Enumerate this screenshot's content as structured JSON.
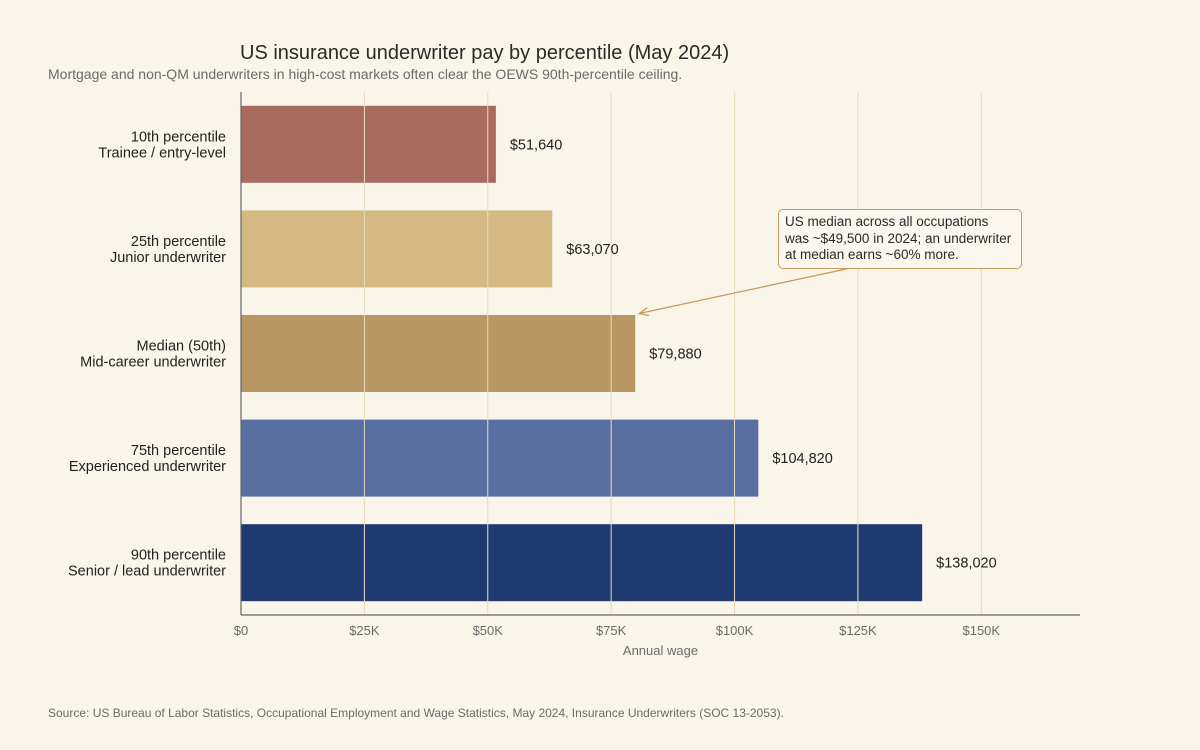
{
  "chart_data": {
    "type": "bar",
    "orientation": "horizontal",
    "title": "US insurance underwriter pay by percentile (May 2024)",
    "subtitle": "Mortgage and non-QM underwriters in high-cost markets often clear the OEWS 90th-percentile ceiling.",
    "source": "Source: US Bureau of Labor Statistics, Occupational Employment and Wage Statistics, May 2024, Insurance Underwriters (SOC 13-2053).",
    "xlabel": "Annual wage",
    "ylabel": "",
    "xlim": [
      0,
      170000
    ],
    "x_ticks": [
      0,
      25000,
      50000,
      75000,
      100000,
      125000,
      150000
    ],
    "x_tick_labels": [
      "$0",
      "$25K",
      "$50K",
      "$75K",
      "$100K",
      "$125K",
      "$150K"
    ],
    "grid": "vertical",
    "categories": [
      [
        "10th percentile",
        "Trainee / entry-level"
      ],
      [
        "25th percentile",
        "Junior underwriter"
      ],
      [
        "Median (50th)",
        "Mid-career underwriter"
      ],
      [
        "75th percentile",
        "Experienced underwriter"
      ],
      [
        "90th percentile",
        "Senior / lead underwriter"
      ]
    ],
    "values": [
      51640,
      63070,
      79880,
      104820,
      138020
    ],
    "value_labels": [
      "$51,640",
      "$63,070",
      "$79,880",
      "$104,820",
      "$138,020"
    ],
    "colors": [
      "#a86b5e",
      "#d4b985",
      "#b89762",
      "#5a6fa1",
      "#1f3a70"
    ],
    "annotation": {
      "text": "US median across all occupations was ~$49,500 in 2024; an underwriter at median earns ~60% more.",
      "target_category_index": 2,
      "target_value": 79880
    }
  }
}
